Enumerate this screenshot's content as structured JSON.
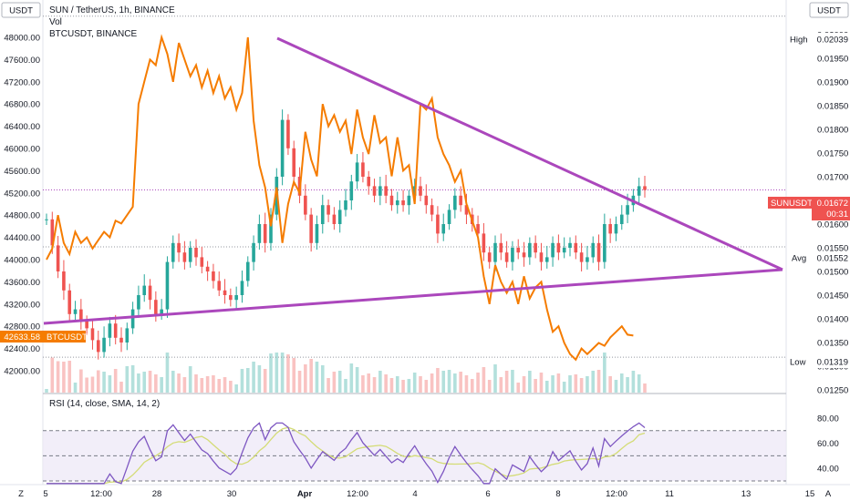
{
  "header": {
    "title": "SUN / TetherUS, 1h, BINANCE",
    "vol_label": "Vol",
    "compare_label": "BTCUSDT, BINANCE",
    "left_currency": "USDT",
    "right_currency": "USDT"
  },
  "rsi": {
    "title": "RSI (14, close, SMA, 14, 2)",
    "ticks": [
      "80.00",
      "60.00",
      "40.00"
    ]
  },
  "price_tags": {
    "sun_label": "SUNUSDT",
    "sun_value": "0.01672",
    "countdown": "00:31",
    "btc_label": "BTCUSDT",
    "btc_value": "42633.58",
    "high_label": "High",
    "high_value": "0.02039",
    "avg_label": "Avg",
    "avg_value": "0.01552",
    "low_label": "Low",
    "low_value": "0.01319"
  },
  "bottom_bar": {
    "left_icon": "Z",
    "right_icon": "A"
  },
  "colors": {
    "up": "#26a69a",
    "down": "#ef5350",
    "btc_line": "#f57c00",
    "trendline": "#ab47bc",
    "rsi_line": "#7e57c2",
    "rsi_sma": "#d4dc76",
    "rsi_band": "#ede7f6"
  },
  "chart_data": {
    "type": "line",
    "x_ticks": [
      "5",
      "12:00",
      "28",
      "30",
      "Apr",
      "12:00",
      "4",
      "6",
      "8",
      "12:00",
      "11",
      "13",
      "15"
    ],
    "y_left_ticks": [
      48000,
      47600,
      47200,
      46800,
      46400,
      46000,
      45600,
      45200,
      44800,
      44400,
      44000,
      43600,
      43200,
      42800,
      42400,
      42000
    ],
    "y_right_ticks": [
      "0.02050",
      "0.02000",
      "0.01950",
      "0.01900",
      "0.01850",
      "0.01800",
      "0.01750",
      "0.01700",
      "0.01650",
      "0.01600",
      "0.01550",
      "0.01500",
      "0.01450",
      "0.01400",
      "0.01350",
      "0.01300",
      "0.01250"
    ],
    "ylim_left": [
      41700,
      48250
    ],
    "ylim_right": [
      0.0125,
      0.0206
    ],
    "series": [
      {
        "name": "SUN / TetherUS",
        "style": "candles",
        "values": [
          0.0161,
          0.01555,
          0.015,
          0.0146,
          0.0141,
          0.0142,
          0.01395,
          0.0138,
          0.01355,
          0.0133,
          0.0136,
          0.0139,
          0.0136,
          0.0135,
          0.0138,
          0.0142,
          0.0145,
          0.0147,
          0.0144,
          0.0141,
          0.0142,
          0.0152,
          0.0156,
          0.0154,
          0.0152,
          0.0155,
          0.0153,
          0.0151,
          0.015,
          0.0148,
          0.0146,
          0.0145,
          0.0144,
          0.0145,
          0.0148,
          0.0152,
          0.0156,
          0.016,
          0.0156,
          0.0162,
          0.017,
          0.0182,
          0.0176,
          0.017,
          0.0166,
          0.0162,
          0.0156,
          0.016,
          0.0164,
          0.0162,
          0.016,
          0.0163,
          0.0165,
          0.0169,
          0.0173,
          0.017,
          0.0168,
          0.0166,
          0.0168,
          0.0166,
          0.0164,
          0.0165,
          0.0164,
          0.0166,
          0.0168,
          0.0166,
          0.0164,
          0.0162,
          0.0158,
          0.016,
          0.0163,
          0.0166,
          0.0164,
          0.0162,
          0.016,
          0.0158,
          0.0154,
          0.0152,
          0.0156,
          0.0154,
          0.0152,
          0.0155,
          0.0154,
          0.0153,
          0.0156,
          0.0154,
          0.0152,
          0.0153,
          0.0156,
          0.0154,
          0.0155,
          0.0156,
          0.0154,
          0.0152,
          0.0153,
          0.0156,
          0.0152,
          0.016,
          0.0158,
          0.016,
          0.0162,
          0.0164,
          0.0166,
          0.0168,
          0.01672
        ]
      },
      {
        "name": "BTCUSDT",
        "style": "line",
        "values": [
          44000,
          44200,
          44800,
          44300,
          44100,
          44500,
          44300,
          44400,
          44200,
          44350,
          44500,
          44400,
          44700,
          44650,
          44800,
          44950,
          46800,
          47200,
          47600,
          47500,
          48000,
          47700,
          47200,
          47900,
          47600,
          47300,
          47500,
          47100,
          47400,
          47000,
          47300,
          46900,
          47100,
          46700,
          47000,
          48000,
          46500,
          45700,
          45300,
          44600,
          45300,
          44300,
          45000,
          45400,
          45200,
          46300,
          45800,
          45500,
          46800,
          46400,
          46600,
          46300,
          46500,
          45900,
          46700,
          46200,
          45900,
          46600,
          46100,
          46200,
          45500,
          46200,
          45600,
          45700,
          45000,
          46800,
          46700,
          46900,
          46200,
          45900,
          45700,
          45400,
          45600,
          45000,
          44700,
          44400,
          43700,
          43200,
          43900,
          43600,
          43400,
          43600,
          43200,
          43700,
          43300,
          43500,
          43600,
          43100,
          42700,
          42800,
          42500,
          42300,
          42200,
          42400,
          42300,
          42400,
          42500,
          42450,
          42600,
          42700,
          42800,
          42650,
          42633
        ]
      }
    ],
    "annotations": [
      "High 0.02039",
      "Avg 0.01552",
      "Low 0.01319",
      "SUNUSDT 0.01672",
      "BTCUSDT 42633.58"
    ],
    "grid": false,
    "legend": "top-left"
  }
}
